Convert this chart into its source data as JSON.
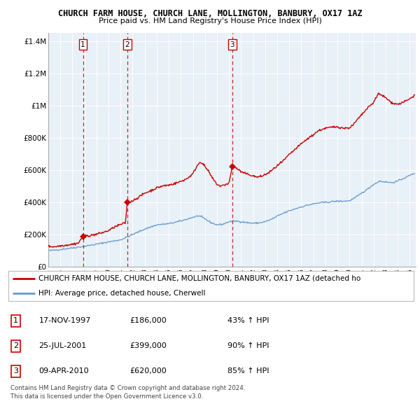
{
  "title": "CHURCH FARM HOUSE, CHURCH LANE, MOLLINGTON, BANBURY, OX17 1AZ",
  "subtitle": "Price paid vs. HM Land Registry's House Price Index (HPI)",
  "sales": [
    {
      "label": "1",
      "date_num": 1997.88,
      "price": 186000
    },
    {
      "label": "2",
      "date_num": 2001.56,
      "price": 399000
    },
    {
      "label": "3",
      "date_num": 2010.27,
      "price": 620000
    }
  ],
  "sale_dates_str": [
    "17-NOV-1997",
    "25-JUL-2001",
    "09-APR-2010"
  ],
  "sale_prices_str": [
    "£186,000",
    "£399,000",
    "£620,000"
  ],
  "sale_pct_str": [
    "43% ↑ HPI",
    "90% ↑ HPI",
    "85% ↑ HPI"
  ],
  "legend_house": "CHURCH FARM HOUSE, CHURCH LANE, MOLLINGTON, BANBURY, OX17 1AZ (detached ho",
  "legend_hpi": "HPI: Average price, detached house, Cherwell",
  "footer1": "Contains HM Land Registry data © Crown copyright and database right 2024.",
  "footer2": "This data is licensed under the Open Government Licence v3.0.",
  "house_color": "#cc0000",
  "hpi_color": "#6699cc",
  "chart_bg": "#e8f0f8",
  "ylim": [
    0,
    1450000
  ],
  "xlim_start": 1995.0,
  "xlim_end": 2025.5,
  "yticks": [
    0,
    200000,
    400000,
    600000,
    800000,
    1000000,
    1200000,
    1400000
  ],
  "ytick_labels": [
    "£0",
    "£200K",
    "£400K",
    "£600K",
    "£800K",
    "£1M",
    "£1.2M",
    "£1.4M"
  ],
  "xticks": [
    1995,
    1996,
    1997,
    1998,
    1999,
    2000,
    2001,
    2002,
    2003,
    2004,
    2005,
    2006,
    2007,
    2008,
    2009,
    2010,
    2011,
    2012,
    2013,
    2014,
    2015,
    2016,
    2017,
    2018,
    2019,
    2020,
    2021,
    2022,
    2023,
    2024,
    2025
  ],
  "background_color": "#ffffff",
  "grid_color": "#ffffff"
}
